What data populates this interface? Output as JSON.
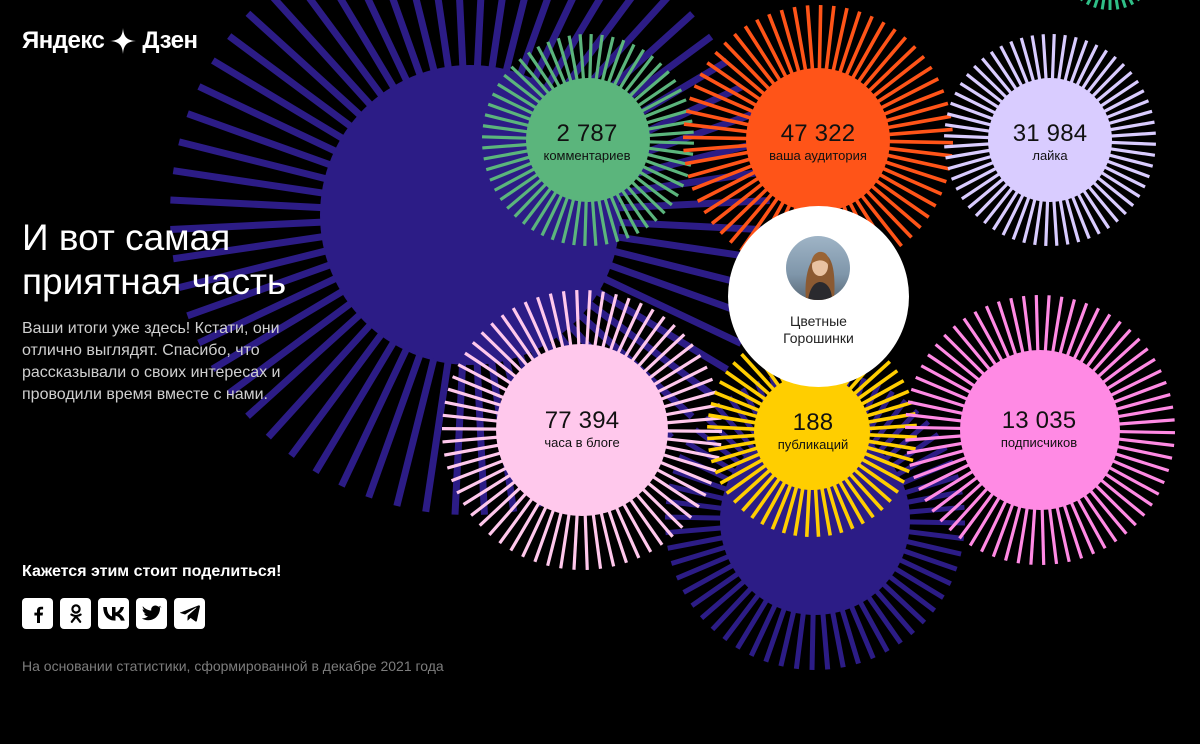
{
  "brand": {
    "name_left": "Яндекс",
    "name_right": "Дзен"
  },
  "headline": "И вот самая приятная часть",
  "intro": "Ваши итоги уже здесь! Кстати, они отлично выглядят. Спасибо, что рассказывали о своих интересах и проводили время вместе с нами.",
  "share": {
    "title": "Кажется этим стоит поделиться!",
    "networks": [
      {
        "name": "facebook",
        "icon": "facebook-icon"
      },
      {
        "name": "odnoklassniki",
        "icon": "odnoklassniki-icon"
      },
      {
        "name": "vkontakte",
        "icon": "vk-icon"
      },
      {
        "name": "twitter",
        "icon": "twitter-icon"
      },
      {
        "name": "telegram",
        "icon": "telegram-icon"
      }
    ]
  },
  "footnote": "На основании статистики, сформированной в декабре 2021 года",
  "profile": {
    "name_line1": "Цветные",
    "name_line2": "Горошинки"
  },
  "stats": {
    "comments": {
      "value": "2 787",
      "label": "комментариев",
      "color": "#5bb57c"
    },
    "audience": {
      "value": "47 322",
      "label": "ваша аудитория",
      "color": "#ff5418"
    },
    "likes": {
      "value": "31 984",
      "label": "лайка",
      "color": "#d9ccff"
    },
    "hours": {
      "value": "77 394",
      "label": "часа в блоге",
      "color": "#ffc8ec"
    },
    "publications": {
      "value": "188",
      "label": "публикаций",
      "color": "#ffce00"
    },
    "subscribers": {
      "value": "13 035",
      "label": "подписчиков",
      "color": "#ff8ae4"
    }
  },
  "colors": {
    "background": "#000000",
    "indigo_burst": "#2c1c86",
    "teal_burst": "#2fbf87"
  }
}
